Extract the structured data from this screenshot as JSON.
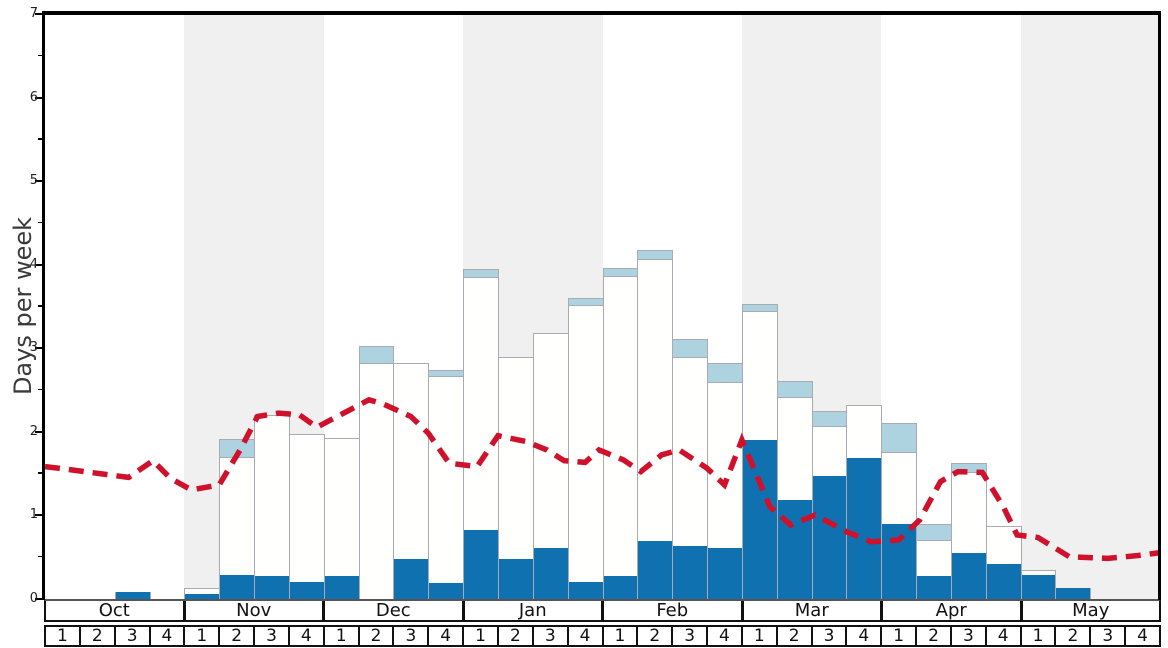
{
  "chart_data": {
    "type": "bar",
    "subtype": "stacked-weekly-bars-with-dashed-line-overlay",
    "title": "",
    "xlabel": "",
    "ylabel": "Days per week",
    "ylim": [
      0,
      7
    ],
    "y_major_ticks": [
      0,
      1,
      2,
      3,
      4,
      5,
      6,
      7
    ],
    "y_minor_tick_step": 0.5,
    "grid": "off",
    "legend": "none",
    "months": [
      "Oct",
      "Nov",
      "Dec",
      "Jan",
      "Feb",
      "Mar",
      "Apr",
      "May"
    ],
    "week_labels": [
      "1",
      "2",
      "3",
      "4"
    ],
    "shaded_month_indices": [
      1,
      3,
      5,
      7
    ],
    "categories": [
      "Oct-1",
      "Oct-2",
      "Oct-3",
      "Oct-4",
      "Nov-1",
      "Nov-2",
      "Nov-3",
      "Nov-4",
      "Dec-1",
      "Dec-2",
      "Dec-3",
      "Dec-4",
      "Jan-1",
      "Jan-2",
      "Jan-3",
      "Jan-4",
      "Feb-1",
      "Feb-2",
      "Feb-3",
      "Feb-4",
      "Mar-1",
      "Mar-2",
      "Mar-3",
      "Mar-4",
      "Apr-1",
      "Apr-2",
      "Apr-3",
      "Apr-4",
      "May-1",
      "May-2",
      "May-3",
      "May-4"
    ],
    "series": [
      {
        "name": "dark-blue-bottom-segment",
        "color": "#1071b1",
        "values": [
          0,
          0,
          0.08,
          0,
          0.06,
          0.29,
          0.28,
          0.2,
          0.27,
          0,
          0.48,
          0.19,
          0.83,
          0.48,
          0.61,
          0.2,
          0.28,
          0.7,
          0.63,
          0.61,
          1.9,
          1.19,
          1.47,
          1.69,
          0.9,
          0.27,
          0.55,
          0.42,
          0.29,
          0.13,
          0,
          0
        ]
      },
      {
        "name": "white-middle-segment",
        "color": "#fffffe",
        "values": [
          0,
          0,
          0,
          0,
          0.06,
          1.4,
          1.92,
          1.77,
          1.65,
          2.82,
          2.34,
          2.47,
          3.02,
          2.41,
          2.57,
          3.32,
          3.58,
          3.37,
          2.26,
          1.98,
          1.54,
          1.22,
          0.6,
          0.63,
          0.86,
          0.43,
          0.97,
          0.45,
          0.05,
          0,
          0,
          0
        ]
      },
      {
        "name": "light-blue-top-segment",
        "color": "#aed3e0",
        "values": [
          0,
          0,
          0,
          0,
          0,
          0.22,
          0,
          0,
          0,
          0.2,
          0,
          0.08,
          0.1,
          0,
          0,
          0.08,
          0.1,
          0.1,
          0.22,
          0.23,
          0.09,
          0.2,
          0.17,
          0,
          0.34,
          0.19,
          0.1,
          0,
          0,
          0,
          0,
          0
        ]
      }
    ],
    "line": {
      "name": "red-dashed-average-line",
      "color": "#d0112c",
      "style": "dashed",
      "x_weeks": [
        0,
        0.6,
        1.5,
        2.4,
        3.1,
        3.6,
        4.2,
        5.0,
        5.6,
        6.1,
        6.7,
        7.3,
        7.8,
        8.3,
        9.3,
        9.7,
        10.5,
        11.0,
        11.6,
        12.4,
        13.0,
        13.8,
        14.4,
        14.9,
        15.5,
        15.9,
        16.6,
        17.1,
        17.7,
        18.2,
        19.0,
        19.5,
        20.0,
        20.8,
        21.4,
        22.1,
        23.0,
        23.7,
        24.5,
        25.1,
        25.7,
        26.2,
        26.9,
        27.5,
        27.9,
        28.5,
        29.4,
        30.5,
        31.5,
        32.0
      ],
      "values": [
        1.58,
        1.55,
        1.5,
        1.45,
        1.65,
        1.44,
        1.3,
        1.36,
        1.78,
        2.18,
        2.22,
        2.2,
        2.05,
        2.16,
        2.38,
        2.33,
        2.18,
        1.98,
        1.62,
        1.58,
        1.95,
        1.88,
        1.78,
        1.65,
        1.63,
        1.78,
        1.66,
        1.52,
        1.72,
        1.78,
        1.56,
        1.36,
        1.9,
        1.1,
        0.88,
        1.0,
        0.8,
        0.68,
        0.7,
        0.94,
        1.4,
        1.52,
        1.51,
        1.1,
        0.76,
        0.73,
        0.5,
        0.48,
        0.52,
        0.55
      ]
    },
    "colors": {
      "shading_band": "#f0f0f0",
      "bar_border": "#aaaab2",
      "axis_frame": "#000000",
      "table_border": "#111111",
      "y_title_text": "#3a3a3a",
      "tick_label_text": "#222222"
    }
  }
}
